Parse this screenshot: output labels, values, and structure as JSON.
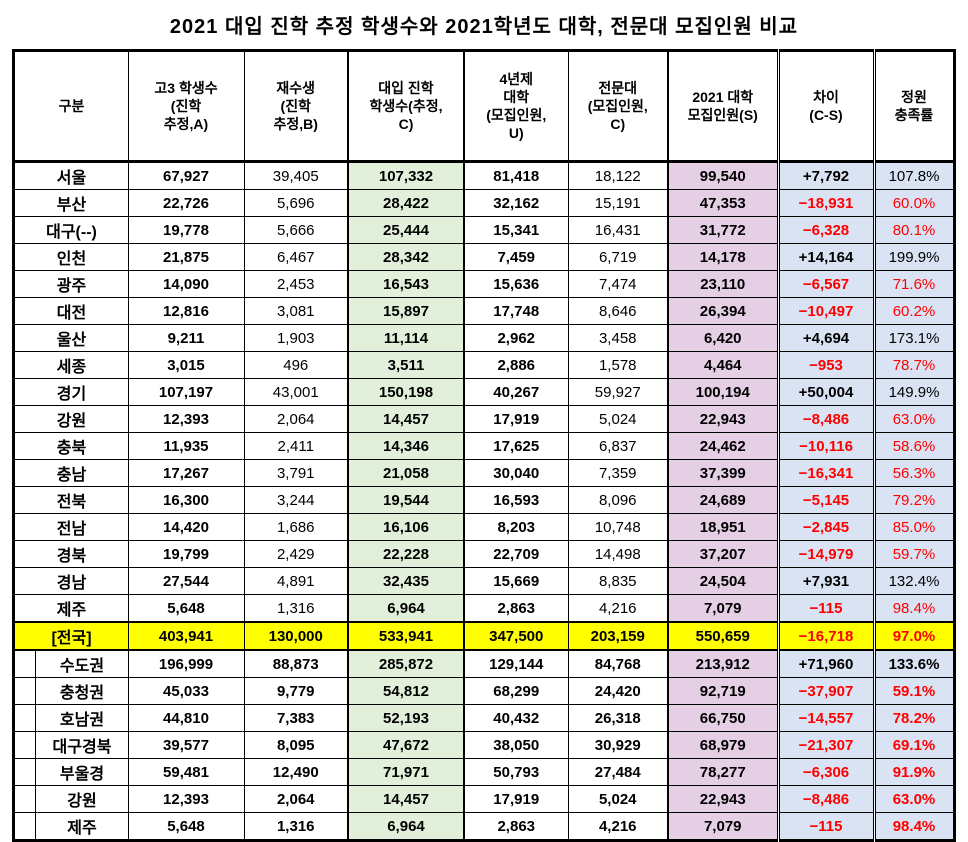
{
  "title": "2021 대입 진학 추정 학생수와 2021학년도 대학, 전문대 모집인원 비교",
  "colors": {
    "green": "#e2efda",
    "purple": "#e4cfe4",
    "blue": "#dae3f3",
    "yellow": "#ffff00",
    "negative": "#ff0000"
  },
  "chart_data": {
    "type": "table",
    "title": "2021 대입 진학 추정 학생수와 2021학년도 대학, 전문대 모집인원 비교",
    "headers": [
      "구분",
      "고3 학생수\n(진학\n추정,A)",
      "재수생\n(진학\n추정,B)",
      "대입 진학\n학생수(추정,\nC)",
      "4년제\n대학\n(모집인원,\nU)",
      "전문대\n(모집인원,\nC)",
      "2021 대학\n모집인원(S)",
      "차이\n(C-S)",
      "정원\n충족률"
    ],
    "rows": [
      {
        "label": "서울",
        "type": "city",
        "values": [
          "67,927",
          "39,405",
          "107,332",
          "81,418",
          "18,122",
          "99,540",
          "+7,792",
          "107.8%"
        ]
      },
      {
        "label": "부산",
        "type": "city",
        "values": [
          "22,726",
          "5,696",
          "28,422",
          "32,162",
          "15,191",
          "47,353",
          "−18,931",
          "60.0%"
        ]
      },
      {
        "label": "대구(--)",
        "type": "city",
        "values": [
          "19,778",
          "5,666",
          "25,444",
          "15,341",
          "16,431",
          "31,772",
          "−6,328",
          "80.1%"
        ]
      },
      {
        "label": "인천",
        "type": "city",
        "values": [
          "21,875",
          "6,467",
          "28,342",
          "7,459",
          "6,719",
          "14,178",
          "+14,164",
          "199.9%"
        ]
      },
      {
        "label": "광주",
        "type": "city",
        "values": [
          "14,090",
          "2,453",
          "16,543",
          "15,636",
          "7,474",
          "23,110",
          "−6,567",
          "71.6%"
        ]
      },
      {
        "label": "대전",
        "type": "city",
        "values": [
          "12,816",
          "3,081",
          "15,897",
          "17,748",
          "8,646",
          "26,394",
          "−10,497",
          "60.2%"
        ]
      },
      {
        "label": "울산",
        "type": "city",
        "values": [
          "9,211",
          "1,903",
          "11,114",
          "2,962",
          "3,458",
          "6,420",
          "+4,694",
          "173.1%"
        ]
      },
      {
        "label": "세종",
        "type": "city",
        "values": [
          "3,015",
          "496",
          "3,511",
          "2,886",
          "1,578",
          "4,464",
          "−953",
          "78.7%"
        ]
      },
      {
        "label": "경기",
        "type": "city",
        "values": [
          "107,197",
          "43,001",
          "150,198",
          "40,267",
          "59,927",
          "100,194",
          "+50,004",
          "149.9%"
        ]
      },
      {
        "label": "강원",
        "type": "city",
        "values": [
          "12,393",
          "2,064",
          "14,457",
          "17,919",
          "5,024",
          "22,943",
          "−8,486",
          "63.0%"
        ]
      },
      {
        "label": "충북",
        "type": "city",
        "values": [
          "11,935",
          "2,411",
          "14,346",
          "17,625",
          "6,837",
          "24,462",
          "−10,116",
          "58.6%"
        ]
      },
      {
        "label": "충남",
        "type": "city",
        "values": [
          "17,267",
          "3,791",
          "21,058",
          "30,040",
          "7,359",
          "37,399",
          "−16,341",
          "56.3%"
        ]
      },
      {
        "label": "전북",
        "type": "city",
        "values": [
          "16,300",
          "3,244",
          "19,544",
          "16,593",
          "8,096",
          "24,689",
          "−5,145",
          "79.2%"
        ]
      },
      {
        "label": "전남",
        "type": "city",
        "values": [
          "14,420",
          "1,686",
          "16,106",
          "8,203",
          "10,748",
          "18,951",
          "−2,845",
          "85.0%"
        ]
      },
      {
        "label": "경북",
        "type": "city",
        "values": [
          "19,799",
          "2,429",
          "22,228",
          "22,709",
          "14,498",
          "37,207",
          "−14,979",
          "59.7%"
        ]
      },
      {
        "label": "경남",
        "type": "city",
        "values": [
          "27,544",
          "4,891",
          "32,435",
          "15,669",
          "8,835",
          "24,504",
          "+7,931",
          "132.4%"
        ]
      },
      {
        "label": "제주",
        "type": "city",
        "values": [
          "5,648",
          "1,316",
          "6,964",
          "2,863",
          "4,216",
          "7,079",
          "−115",
          "98.4%"
        ]
      },
      {
        "label": "[전국]",
        "type": "total",
        "values": [
          "403,941",
          "130,000",
          "533,941",
          "347,500",
          "203,159",
          "550,659",
          "−16,718",
          "97.0%"
        ]
      },
      {
        "label": "수도권",
        "type": "region",
        "values": [
          "196,999",
          "88,873",
          "285,872",
          "129,144",
          "84,768",
          "213,912",
          "+71,960",
          "133.6%"
        ]
      },
      {
        "label": "충청권",
        "type": "region",
        "values": [
          "45,033",
          "9,779",
          "54,812",
          "68,299",
          "24,420",
          "92,719",
          "−37,907",
          "59.1%"
        ]
      },
      {
        "label": "호남권",
        "type": "region",
        "values": [
          "44,810",
          "7,383",
          "52,193",
          "40,432",
          "26,318",
          "66,750",
          "−14,557",
          "78.2%"
        ]
      },
      {
        "label": "대구경북",
        "type": "region",
        "values": [
          "39,577",
          "8,095",
          "47,672",
          "38,050",
          "30,929",
          "68,979",
          "−21,307",
          "69.1%"
        ]
      },
      {
        "label": "부울경",
        "type": "region",
        "values": [
          "59,481",
          "12,490",
          "71,971",
          "50,793",
          "27,484",
          "78,277",
          "−6,306",
          "91.9%"
        ]
      },
      {
        "label": "강원",
        "type": "region",
        "values": [
          "12,393",
          "2,064",
          "14,457",
          "17,919",
          "5,024",
          "22,943",
          "−8,486",
          "63.0%"
        ]
      },
      {
        "label": "제주",
        "type": "region",
        "values": [
          "5,648",
          "1,316",
          "6,964",
          "2,863",
          "4,216",
          "7,079",
          "−115",
          "98.4%"
        ]
      }
    ]
  }
}
